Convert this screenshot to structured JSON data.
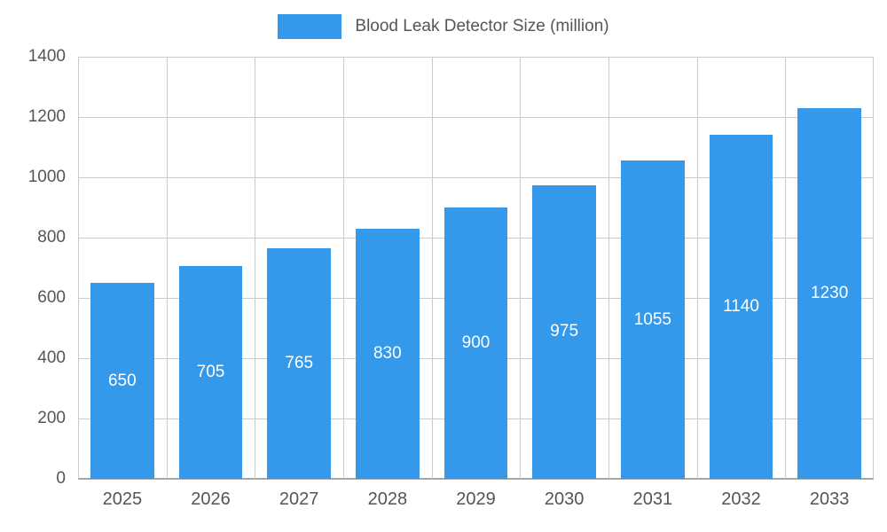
{
  "chart_data": {
    "type": "bar",
    "title": "Blood Leak Detector Size (million)",
    "categories": [
      "2025",
      "2026",
      "2027",
      "2028",
      "2029",
      "2030",
      "2031",
      "2032",
      "2033"
    ],
    "values": [
      650,
      705,
      765,
      830,
      900,
      975,
      1055,
      1140,
      1230
    ],
    "series": [
      {
        "name": "Blood Leak Detector Size (million)",
        "values": [
          650,
          705,
          765,
          830,
          900,
          975,
          1055,
          1140,
          1230
        ]
      }
    ],
    "xlabel": "",
    "ylabel": "",
    "ylim": [
      0,
      1400
    ],
    "ytick_step": 200,
    "grid": true,
    "legend_position": "top",
    "colors": {
      "bar": "#3498EB",
      "data_label": "#ffffff",
      "axis_text": "#555555",
      "gridline": "#cccccc"
    }
  }
}
